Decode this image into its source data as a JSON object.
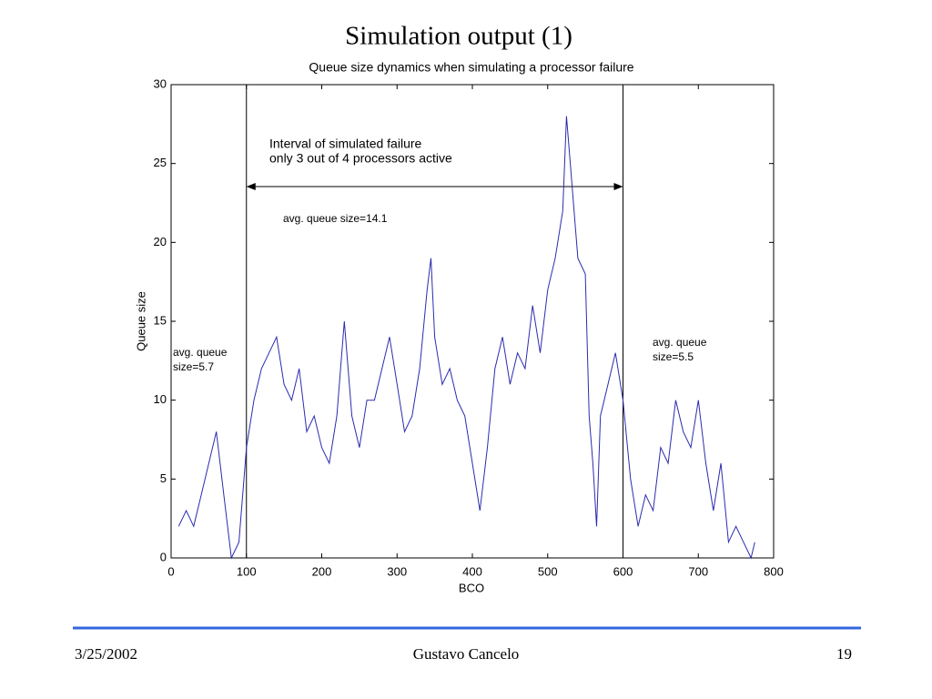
{
  "slide_title": "Simulation output (1)",
  "footer": {
    "date": "3/25/2002",
    "author": "Gustavo Cancelo",
    "page": "19"
  },
  "chart_data": {
    "type": "line",
    "title": "Queue size dynamics when simulating a processor failure",
    "x_label": "BCO",
    "y_label": "Queue size",
    "xlim": [
      0,
      800
    ],
    "ylim": [
      0,
      30
    ],
    "xticks": [
      0,
      100,
      200,
      300,
      400,
      500,
      600,
      700,
      800
    ],
    "yticks": [
      0,
      5,
      10,
      15,
      20,
      25,
      30
    ],
    "interval": [
      100,
      600
    ],
    "annotations": {
      "interval": [
        "Interval of simulated failure",
        "only 3 out of 4 processors active"
      ],
      "during": "avg. queue size=14.1",
      "before": [
        "avg. queue",
        "size=5.7"
      ],
      "after": [
        "avg. queue",
        "size=5.5"
      ]
    },
    "series": [
      {
        "color": "#2b2bb0",
        "x": [
          10,
          20,
          30,
          40,
          50,
          60,
          70,
          80,
          90,
          100,
          110,
          120,
          130,
          140,
          150,
          160,
          170,
          180,
          190,
          200,
          210,
          220,
          230,
          240,
          250,
          260,
          270,
          280,
          290,
          300,
          310,
          320,
          330,
          340,
          345,
          350,
          360,
          370,
          380,
          390,
          400,
          410,
          420,
          430,
          440,
          450,
          460,
          470,
          480,
          490,
          500,
          510,
          520,
          525,
          530,
          540,
          550,
          555,
          560,
          565,
          570,
          580,
          590,
          600,
          610,
          620,
          630,
          640,
          650,
          660,
          670,
          680,
          690,
          700,
          710,
          720,
          730,
          740,
          750,
          760,
          770,
          775
        ],
        "values": [
          2,
          3,
          2,
          4,
          6,
          8,
          4,
          0,
          1,
          7,
          10,
          12,
          13,
          14,
          11,
          10,
          12,
          8,
          9,
          7,
          6,
          9,
          15,
          9,
          7,
          10,
          10,
          12,
          14,
          11,
          8,
          9,
          12,
          17,
          19,
          14,
          11,
          12,
          10,
          9,
          6,
          3,
          7,
          12,
          14,
          11,
          13,
          12,
          16,
          13,
          17,
          19,
          22,
          28,
          25,
          19,
          18,
          9,
          6,
          2,
          9,
          11,
          13,
          10,
          5,
          2,
          4,
          3,
          7,
          6,
          10,
          8,
          7,
          10,
          6,
          3,
          6,
          1,
          2,
          1,
          0,
          1
        ]
      }
    ]
  }
}
